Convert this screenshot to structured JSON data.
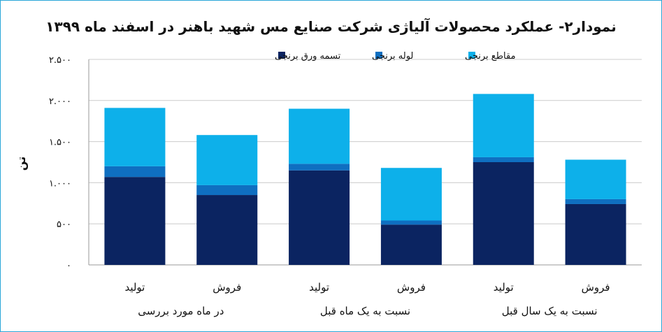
{
  "chart_data": {
    "type": "bar",
    "stacked": true,
    "title": "نمودار۲- عملکرد محصولات آلیاژی شرکت صنایع مس شهید باهنر در اسفند ماه ۱۳۹۹",
    "ylabel": "تن",
    "ylim": [
      0,
      2500
    ],
    "yticks": [
      {
        "value": 0,
        "label": "۰"
      },
      {
        "value": 500,
        "label": "۵۰۰"
      },
      {
        "value": 1000,
        "label": "۱.۰۰۰"
      },
      {
        "value": 1500,
        "label": "۱.۵۰۰"
      },
      {
        "value": 2000,
        "label": "۲.۰۰۰"
      },
      {
        "value": 2500,
        "label": "۲.۵۰۰"
      }
    ],
    "grid": true,
    "legend_position": "top",
    "categories": [
      "تولید",
      "فروش",
      "تولید",
      "فروش",
      "تولید",
      "فروش"
    ],
    "groups": [
      {
        "label": "در ماه مورد بررسی",
        "span": [
          0,
          1
        ]
      },
      {
        "label": "نسبت به یک ماه قبل",
        "span": [
          2,
          3
        ]
      },
      {
        "label": "نسبت به یک سال قبل",
        "span": [
          4,
          5
        ]
      }
    ],
    "series": [
      {
        "name": "تسمه ورق برنجی",
        "color": "#0b2461",
        "values": [
          1070,
          850,
          1150,
          490,
          1250,
          740
        ]
      },
      {
        "name": "لوله برنجی",
        "color": "#0f6fc1",
        "values": [
          130,
          120,
          80,
          50,
          60,
          60
        ]
      },
      {
        "name": "مقاطع برنجی",
        "color": "#0db0ea",
        "values": [
          710,
          610,
          670,
          640,
          770,
          480
        ]
      }
    ]
  }
}
